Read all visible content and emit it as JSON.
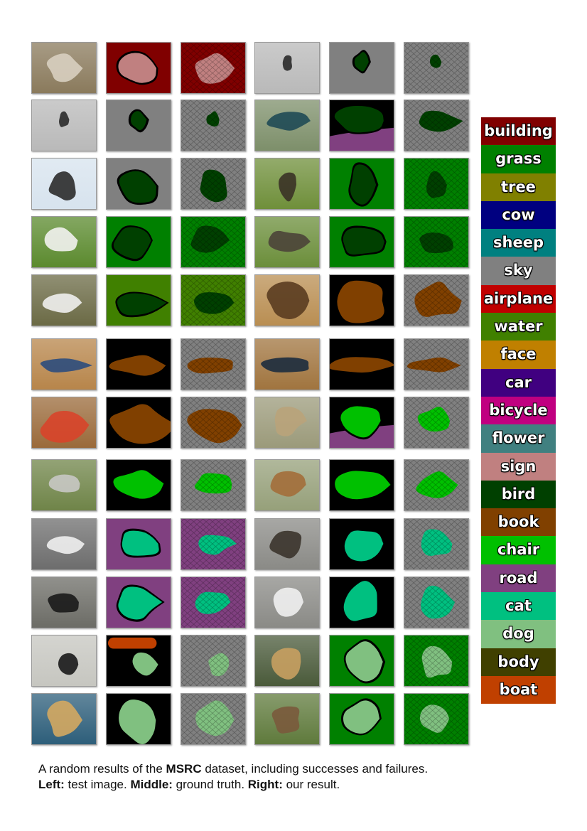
{
  "legend": [
    {
      "label": "building",
      "color": "#800000"
    },
    {
      "label": "grass",
      "color": "#008000"
    },
    {
      "label": "tree",
      "color": "#808000"
    },
    {
      "label": "cow",
      "color": "#000080"
    },
    {
      "label": "sheep",
      "color": "#008080"
    },
    {
      "label": "sky",
      "color": "#808080"
    },
    {
      "label": "airplane",
      "color": "#c00000"
    },
    {
      "label": "water",
      "color": "#408000"
    },
    {
      "label": "face",
      "color": "#c08000"
    },
    {
      "label": "car",
      "color": "#400080"
    },
    {
      "label": "bicycle",
      "color": "#c00080"
    },
    {
      "label": "flower",
      "color": "#408080"
    },
    {
      "label": "sign",
      "color": "#c08080"
    },
    {
      "label": "bird",
      "color": "#004000"
    },
    {
      "label": "book",
      "color": "#804000"
    },
    {
      "label": "chair",
      "color": "#00c000"
    },
    {
      "label": "road",
      "color": "#804080"
    },
    {
      "label": "cat",
      "color": "#00c080"
    },
    {
      "label": "dog",
      "color": "#80c080"
    },
    {
      "label": "body",
      "color": "#404000"
    },
    {
      "label": "boat",
      "color": "#c04000"
    }
  ],
  "rows": [
    {
      "a": {
        "img": "sign",
        "gt": "sign",
        "res": "sign"
      },
      "b": {
        "img": "bird-sky",
        "gt": "bird-sky",
        "res": "bird-sky"
      }
    },
    {
      "a": {
        "img": "bird-sky",
        "gt": "bird-sky",
        "res": "bird-sky"
      },
      "b": {
        "img": "peacock",
        "gt": "peacock",
        "res": "peacock"
      }
    },
    {
      "a": {
        "img": "pigeon",
        "gt": "pigeon",
        "res": "pigeon"
      },
      "b": {
        "img": "goose",
        "gt": "goose",
        "res": "goose"
      }
    },
    {
      "a": {
        "img": "duck",
        "gt": "duck",
        "res": "duck"
      },
      "b": {
        "img": "goose2",
        "gt": "goose2",
        "res": "goose2"
      }
    },
    {
      "a": {
        "img": "swans",
        "gt": "swans",
        "res": "swans"
      },
      "b": {
        "img": "books-box",
        "gt": "books-box",
        "res": "books-box"
      }
    },
    {
      "a": {
        "img": "bookshelf",
        "gt": "bookshelf",
        "res": "bookshelf"
      },
      "b": {
        "img": "bookshelf2",
        "gt": "bookshelf2",
        "res": "bookshelf2"
      }
    },
    {
      "a": {
        "img": "papers",
        "gt": "papers",
        "res": "papers"
      },
      "b": {
        "img": "bench",
        "gt": "bench",
        "res": "bench"
      }
    },
    {
      "a": {
        "img": "bench2",
        "gt": "bench2",
        "res": "bench2"
      },
      "b": {
        "img": "bench3",
        "gt": "bench3",
        "res": "bench3"
      }
    },
    {
      "a": {
        "img": "cat",
        "gt": "cat",
        "res": "cat"
      },
      "b": {
        "img": "cat2",
        "gt": "cat2",
        "res": "cat2"
      }
    },
    {
      "a": {
        "img": "cat3",
        "gt": "cat3",
        "res": "cat3"
      },
      "b": {
        "img": "cat4",
        "gt": "cat4",
        "res": "cat4"
      }
    },
    {
      "a": {
        "img": "dog",
        "gt": "dog",
        "res": "dog"
      },
      "b": {
        "img": "dog2",
        "gt": "dog2",
        "res": "dog2"
      }
    },
    {
      "a": {
        "img": "dog3",
        "gt": "dog3",
        "res": "dog3"
      },
      "b": {
        "img": "dog4",
        "gt": "dog4",
        "res": "dog4"
      }
    }
  ],
  "caption": {
    "line1_pre": "A random results of the ",
    "line1_bold": "MSRC",
    "line1_post": " dataset, including successes and failures.",
    "left_label": "Left:",
    "left_text": " test image. ",
    "middle_label": "Middle:",
    "middle_text": " ground truth. ",
    "right_label": "Right:",
    "right_text": " our result."
  }
}
